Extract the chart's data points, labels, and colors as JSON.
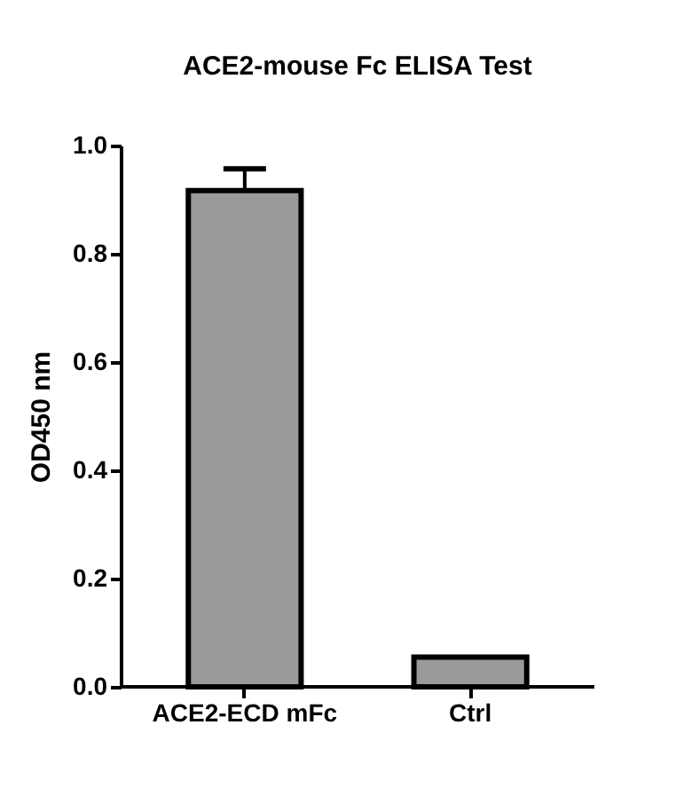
{
  "chart_data": {
    "type": "bar",
    "title": "ACE2-mouse Fc ELISA Test",
    "ylabel": "OD450 nm",
    "categories": [
      "ACE2-ECD mFc",
      "Ctrl"
    ],
    "values": [
      0.917,
      0.055
    ],
    "errors": [
      0.04,
      null
    ],
    "color": "#9a9a9a",
    "ylim": [
      0,
      1.0
    ],
    "yticks": [
      {
        "value": 0,
        "label": "0.0"
      },
      {
        "value": 0.2,
        "label": "0.2"
      },
      {
        "value": 0.4,
        "label": "0.4"
      },
      {
        "value": 0.6,
        "label": "0.6"
      },
      {
        "value": 0.8,
        "label": "0.8"
      },
      {
        "value": 1.0,
        "label": "1.0"
      }
    ],
    "grid": false
  }
}
